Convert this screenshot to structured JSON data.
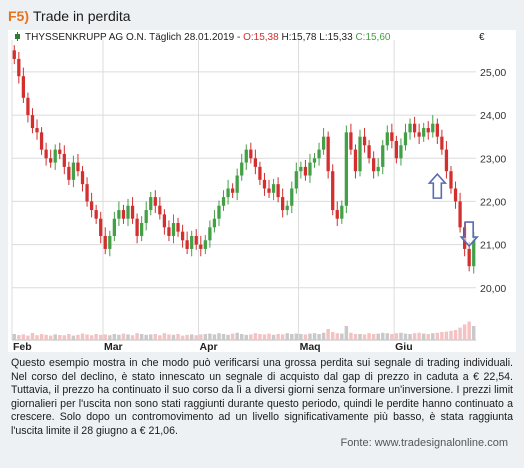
{
  "figure": {
    "number": "F5)",
    "title": "Trade in perdita"
  },
  "chart_header": {
    "instrument": "THYSSENKRUPP AG O.N. Täglich",
    "date": "28.01.2019",
    "open": "O:15,38",
    "high": "H:15,78",
    "low": "L:15,33",
    "close": "C:15,60",
    "currency": "€"
  },
  "colors": {
    "up": "#43a047",
    "down": "#d32f2f",
    "volume": "#bdbdbd",
    "volume_up": "#c9c9c9",
    "volume_down": "#f3c3c3",
    "arrow": "#5a6bb5",
    "title_accent": "#e8731a"
  },
  "description": "Questo esempio mostra in che modo può verificarsi una grossa perdita sui segnale di trading individuali. Nel corso del declino, è stato innescato un segnale di acquisto dal gap di prezzo in caduta a € 22,54. Tuttavia, il prezzo ha continuato il suo corso da lì a diversi giorni senza formare un'inversione. I prezzi limit giornalieri per l'uscita non sono stati raggiunti durante questo periodo, quindi le perdite hanno continuato a crescere. Solo dopo un contromovimento ad un livello significativamente più basso, è stata raggiunta l'uscita limite il 28 giugno a € 21,06.",
  "source": "Fonte: www.tradesignalonline.com",
  "chart_data": {
    "type": "candlestick",
    "ylim": [
      19.3,
      25.6
    ],
    "y_ticks": [
      20,
      21,
      22,
      23,
      24,
      25
    ],
    "y_tick_labels": [
      "20,00",
      "21,00",
      "22,00",
      "23,00",
      "24,00",
      "25,00"
    ],
    "x_month_labels": [
      {
        "label": "Feb",
        "index": 0
      },
      {
        "label": "Mar",
        "index": 20
      },
      {
        "label": "Apr",
        "index": 41
      },
      {
        "label": "Maq",
        "index": 63
      },
      {
        "label": "Giu",
        "index": 84
      }
    ],
    "grid": true,
    "closes": [
      25.3,
      24.9,
      24.4,
      24.0,
      23.7,
      23.6,
      23.2,
      23.0,
      22.9,
      23.2,
      23.1,
      22.8,
      22.5,
      22.9,
      22.7,
      22.4,
      22.0,
      21.8,
      21.6,
      21.2,
      20.9,
      21.2,
      21.6,
      21.8,
      21.6,
      21.9,
      21.6,
      21.2,
      21.5,
      21.8,
      22.1,
      21.9,
      21.7,
      21.4,
      21.2,
      21.5,
      21.3,
      21.1,
      20.9,
      21.2,
      21.0,
      20.9,
      21.1,
      21.4,
      21.6,
      21.9,
      22.1,
      22.3,
      22.2,
      22.6,
      22.9,
      23.2,
      23.0,
      22.8,
      22.5,
      22.3,
      22.2,
      22.4,
      22.1,
      21.8,
      21.9,
      22.3,
      22.7,
      22.8,
      22.6,
      22.9,
      23.0,
      23.2,
      23.5,
      22.7,
      21.8,
      21.6,
      21.9,
      23.6,
      23.2,
      22.7,
      23.5,
      23.3,
      23.0,
      22.7,
      22.8,
      23.3,
      23.6,
      23.4,
      23.0,
      23.3,
      23.6,
      23.8,
      23.6,
      23.5,
      23.7,
      23.6,
      23.8,
      23.5,
      23.2,
      22.7,
      22.3,
      22.0,
      21.4,
      20.9,
      20.5,
      21.1
    ],
    "volume_ylim": [
      0,
      100
    ],
    "volumes": [
      30,
      25,
      28,
      22,
      35,
      24,
      30,
      26,
      22,
      28,
      25,
      24,
      30,
      22,
      26,
      32,
      28,
      24,
      30,
      26,
      28,
      24,
      30,
      26,
      32,
      28,
      24,
      34,
      30,
      26,
      28,
      30,
      24,
      34,
      28,
      26,
      30,
      22,
      26,
      28,
      24,
      28,
      30,
      32,
      28,
      34,
      30,
      26,
      32,
      36,
      30,
      26,
      28,
      34,
      30,
      28,
      32,
      26,
      30,
      28,
      34,
      30,
      32,
      30,
      28,
      32,
      34,
      30,
      36,
      55,
      40,
      34,
      32,
      70,
      36,
      30,
      30,
      28,
      34,
      30,
      32,
      36,
      34,
      30,
      34,
      36,
      32,
      30,
      34,
      36,
      32,
      30,
      34,
      36,
      40,
      42,
      46,
      50,
      62,
      78,
      92,
      70
    ],
    "annotations": [
      {
        "type": "arrow-up",
        "index": 93,
        "price": 22.54
      },
      {
        "type": "arrow-down",
        "index": 100,
        "price": 21.06
      }
    ]
  }
}
